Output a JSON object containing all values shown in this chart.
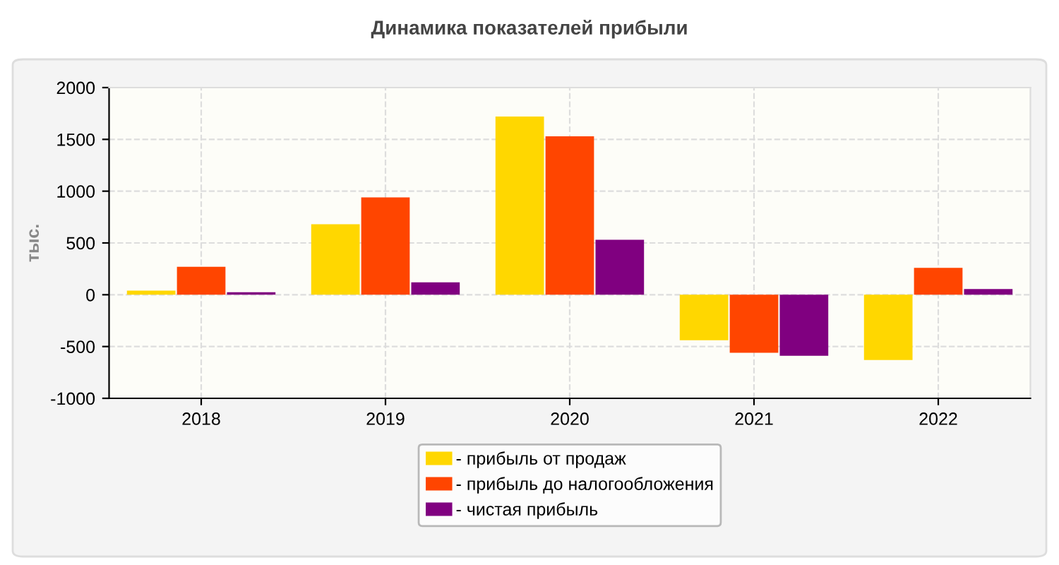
{
  "chart_data": {
    "type": "bar",
    "title": "Динамика показателей прибыли",
    "ylabel": "тыс.",
    "categories": [
      "2018",
      "2019",
      "2020",
      "2021",
      "2022"
    ],
    "series": [
      {
        "name": "- прибыль от продаж",
        "color": "#ffd700",
        "values": [
          40,
          680,
          1720,
          -440,
          -630
        ]
      },
      {
        "name": "- прибыль до налогообложения",
        "color": "#ff4500",
        "values": [
          270,
          940,
          1530,
          -560,
          260
        ]
      },
      {
        "name": "- чистая прибыль",
        "color": "#800080",
        "values": [
          25,
          120,
          530,
          -590,
          55
        ]
      }
    ],
    "ylim": [
      -1000,
      2000
    ],
    "yticks": [
      -1000,
      -500,
      0,
      500,
      1000,
      1500,
      2000
    ],
    "grid": true,
    "legend": "bottom"
  }
}
